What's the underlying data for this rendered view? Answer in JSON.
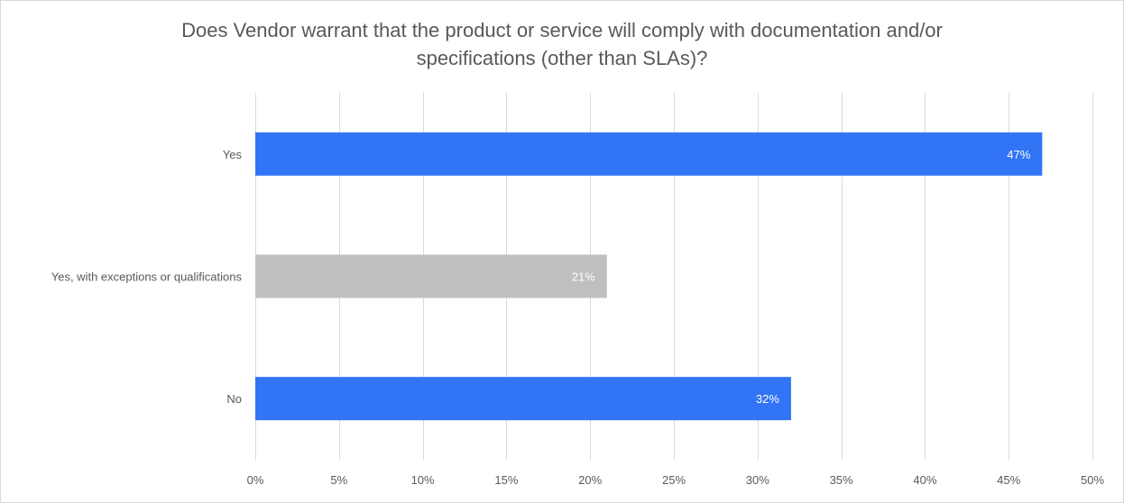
{
  "chart_data": {
    "type": "bar",
    "orientation": "horizontal",
    "title_lines": [
      "Does Vendor warrant that the product or service will comply with documentation and/or",
      "specifications (other than SLAs)?"
    ],
    "categories": [
      "Yes",
      "Yes, with exceptions or qualifications",
      "No"
    ],
    "values": [
      47,
      21,
      32
    ],
    "data_labels": [
      "47%",
      "21%",
      "32%"
    ],
    "colors": [
      "#3174f5",
      "#bfbfbf",
      "#3174f5"
    ],
    "xlim": [
      0,
      50
    ],
    "ticks": [
      0,
      5,
      10,
      15,
      20,
      25,
      30,
      35,
      40,
      45,
      50
    ],
    "tick_labels": [
      "0%",
      "5%",
      "10%",
      "15%",
      "20%",
      "25%",
      "30%",
      "35%",
      "40%",
      "45%",
      "50%"
    ],
    "grid": true,
    "gridline_color": "#d9d9d9",
    "label_color": "#595959",
    "legend": "none"
  }
}
